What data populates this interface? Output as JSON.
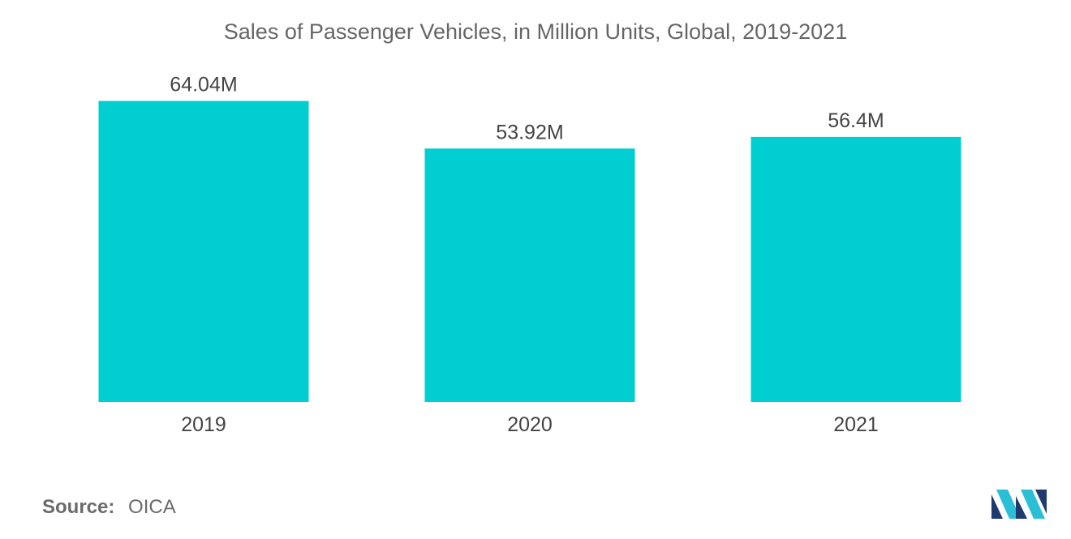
{
  "chart_data": {
    "type": "bar",
    "title": "Sales of Passenger Vehicles, in Million Units, Global, 2019-2021",
    "categories": [
      "2019",
      "2020",
      "2021"
    ],
    "values": [
      64.04,
      53.92,
      56.4
    ],
    "data_labels": [
      "64.04M",
      "53.92M",
      "56.4M"
    ],
    "xlabel": "",
    "ylabel": "",
    "ylim": [
      0,
      70
    ],
    "grid": false,
    "legend": "none",
    "bar_color": "#00ced1"
  },
  "footer": {
    "source_label": "Source:",
    "source_value": "OICA"
  },
  "brand": {
    "logo_icon": "mordor-intelligence-logo-icon",
    "logo_colors": [
      "#1f3a6e",
      "#2bbfd6"
    ]
  }
}
